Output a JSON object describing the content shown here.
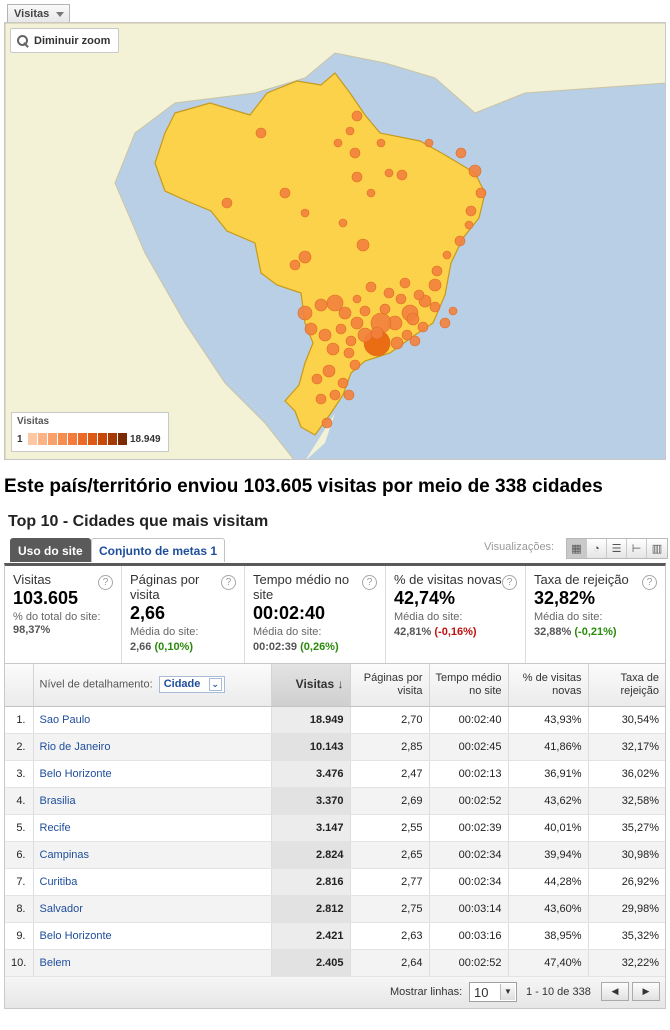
{
  "metric_selector": {
    "label": "Visitas"
  },
  "map": {
    "zoom_label": "Diminuir zoom",
    "legend": {
      "title": "Visitas",
      "min": "1",
      "max": "18.949"
    },
    "colors": {
      "ocean": "#b8cfe6",
      "land": "#f3f1d6",
      "country": "#fcd24a",
      "dot": "#f2813e"
    }
  },
  "summary": "Este país/território enviou 103.605 visitas por meio de 338 cidades",
  "section_title": "Top 10 - Cidades que mais visitam",
  "tabs": {
    "active": "Uso do site",
    "other": "Conjunto de metas 1"
  },
  "visualizations_label": "Visualizações:",
  "scorecard": [
    {
      "label": "Visitas",
      "value": "103.605",
      "sub": "% do total do site:",
      "subval": "98,37%",
      "delta": "",
      "delta_type": ""
    },
    {
      "label": "Páginas por visita",
      "value": "2,66",
      "sub": "Média do site:",
      "subval": "2,66",
      "delta": "(0,10%)",
      "delta_type": "pos"
    },
    {
      "label": "Tempo médio no site",
      "value": "00:02:40",
      "sub": "Média do site:",
      "subval": "00:02:39",
      "delta": "(0,26%)",
      "delta_type": "pos"
    },
    {
      "label": "% de visitas novas",
      "value": "42,74%",
      "sub": "Média do site:",
      "subval": "42,81%",
      "delta": "(-0,16%)",
      "delta_type": "neg"
    },
    {
      "label": "Taxa de rejeição",
      "value": "32,82%",
      "sub": "Média do site:",
      "subval": "32,88%",
      "delta": "(-0,21%)",
      "delta_type": "pos"
    }
  ],
  "table": {
    "dimension_label": "Nível de detalhamento:",
    "dimension_value": "Cidade",
    "columns": [
      "Visitas",
      "Páginas por visita",
      "Tempo médio no site",
      "% de visitas novas",
      "Taxa de rejeição"
    ],
    "rows": [
      {
        "rank": "1.",
        "city": "Sao Paulo",
        "visits": "18.949",
        "ppv": "2,70",
        "time": "00:02:40",
        "new": "43,93%",
        "bounce": "30,54%"
      },
      {
        "rank": "2.",
        "city": "Rio de Janeiro",
        "visits": "10.143",
        "ppv": "2,85",
        "time": "00:02:45",
        "new": "41,86%",
        "bounce": "32,17%"
      },
      {
        "rank": "3.",
        "city": "Belo Horizonte",
        "visits": "3.476",
        "ppv": "2,47",
        "time": "00:02:13",
        "new": "36,91%",
        "bounce": "36,02%"
      },
      {
        "rank": "4.",
        "city": "Brasilia",
        "visits": "3.370",
        "ppv": "2,69",
        "time": "00:02:52",
        "new": "43,62%",
        "bounce": "32,58%"
      },
      {
        "rank": "5.",
        "city": "Recife",
        "visits": "3.147",
        "ppv": "2,55",
        "time": "00:02:39",
        "new": "40,01%",
        "bounce": "35,27%"
      },
      {
        "rank": "6.",
        "city": "Campinas",
        "visits": "2.824",
        "ppv": "2,65",
        "time": "00:02:34",
        "new": "39,94%",
        "bounce": "30,98%"
      },
      {
        "rank": "7.",
        "city": "Curitiba",
        "visits": "2.816",
        "ppv": "2,77",
        "time": "00:02:34",
        "new": "44,28%",
        "bounce": "26,92%"
      },
      {
        "rank": "8.",
        "city": "Salvador",
        "visits": "2.812",
        "ppv": "2,75",
        "time": "00:03:14",
        "new": "43,60%",
        "bounce": "29,98%"
      },
      {
        "rank": "9.",
        "city": "Belo Horizonte",
        "visits": "2.421",
        "ppv": "2,63",
        "time": "00:03:16",
        "new": "38,95%",
        "bounce": "35,32%"
      },
      {
        "rank": "10.",
        "city": "Belem",
        "visits": "2.405",
        "ppv": "2,64",
        "time": "00:02:52",
        "new": "47,40%",
        "bounce": "32,22%"
      }
    ]
  },
  "footer": {
    "rows_label": "Mostrar linhas:",
    "rows_value": "10",
    "range": "1 - 10 de 338"
  }
}
